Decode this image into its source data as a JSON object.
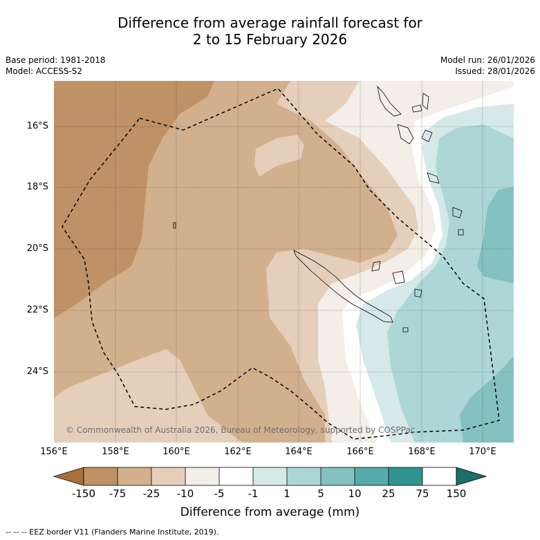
{
  "title_line1": "Difference from average rainfall forecast for",
  "title_line2": "2 to 15 February 2026",
  "base_period": "Base period: 1981-2018",
  "model": "Model: ACCESS-S2",
  "model_run": "Model run: 26/01/2026",
  "issued": "Issued: 28/01/2026",
  "copyright": "© Commonwealth of Australia 2026, Bureau of Meteorology, supported by COSPPac",
  "lat_labels": [
    "16°S",
    "18°S",
    "20°S",
    "22°S",
    "24°S"
  ],
  "lon_labels": [
    "156°E",
    "158°E",
    "160°E",
    "162°E",
    "164°E",
    "166°E",
    "168°E",
    "170°E"
  ],
  "colorbar": {
    "labels": [
      "-150",
      "-75",
      "-25",
      "-10",
      "-5",
      "-1",
      "1",
      "5",
      "10",
      "25",
      "75",
      "150"
    ],
    "colors": [
      "#a9703a",
      "#be9166",
      "#d2b08e",
      "#e5cfbb",
      "#f3efe8",
      "#ffffff",
      "#d6e9e9",
      "#add7d7",
      "#84c1c1",
      "#56aaaa",
      "#2f9590",
      "#1b6e6a"
    ],
    "title": "Difference from average (mm)"
  },
  "legend_footer": "-- -- -- EEZ border V11 (Flanders Marine Institute, 2019)."
}
